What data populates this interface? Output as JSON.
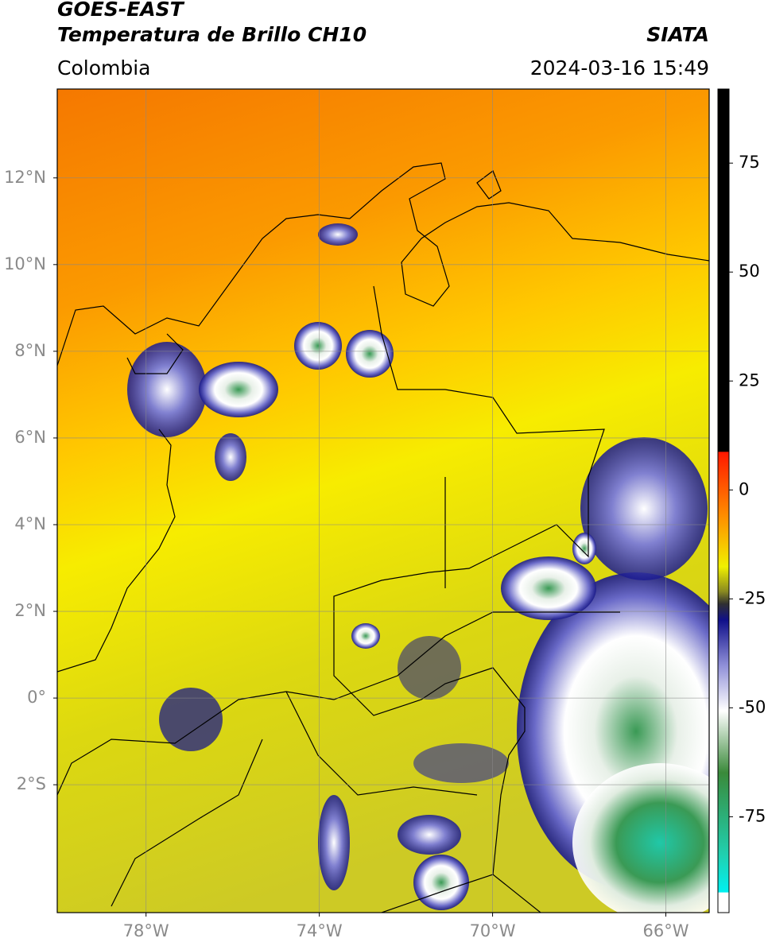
{
  "header": {
    "title": "GOES-EAST",
    "subtitle": "Temperatura de Brillo CH10",
    "source": "SIATA",
    "region": "Colombia",
    "timestamp": "2024-03-16 15:49"
  },
  "map": {
    "lon_range": [
      -80.05,
      -65
    ],
    "lat_range": [
      -4.95,
      14.05
    ],
    "lon_ticks": [
      {
        "value": -78,
        "label": "78°W"
      },
      {
        "value": -74,
        "label": "74°W"
      },
      {
        "value": -70,
        "label": "70°W"
      },
      {
        "value": -66,
        "label": "66°W"
      }
    ],
    "lat_ticks": [
      {
        "value": 12,
        "label": "12°N"
      },
      {
        "value": 10,
        "label": "10°N"
      },
      {
        "value": 8,
        "label": "8°N"
      },
      {
        "value": 6,
        "label": "6°N"
      },
      {
        "value": 4,
        "label": "4°N"
      },
      {
        "value": 2,
        "label": "2°N"
      },
      {
        "value": 0,
        "label": "0°"
      },
      {
        "value": -2,
        "label": "2°S"
      }
    ],
    "grid": true
  },
  "colorbar": {
    "range": [
      -97,
      92
    ],
    "ticks": [
      75,
      50,
      25,
      0,
      -25,
      -50,
      -75
    ]
  }
}
